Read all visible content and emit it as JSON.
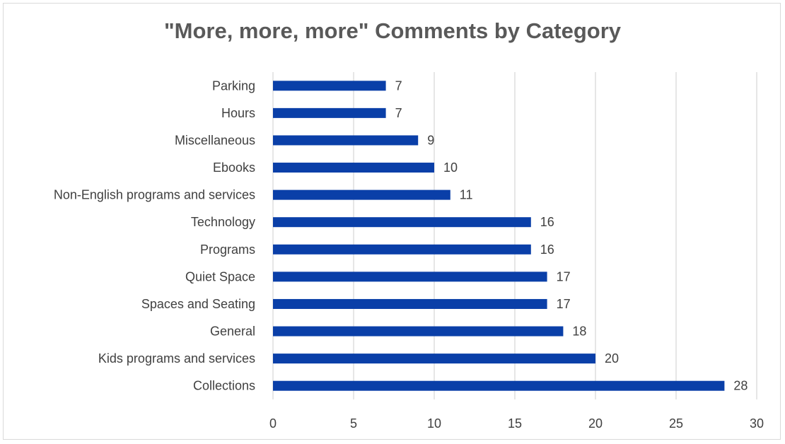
{
  "chart_data": {
    "type": "bar",
    "orientation": "horizontal",
    "title": "\"More, more, more\" Comments by Category",
    "categories": [
      "Parking",
      "Hours",
      "Miscellaneous",
      "Ebooks",
      "Non-English programs and services",
      "Technology",
      "Programs",
      "Quiet Space",
      "Spaces and Seating",
      "General",
      "Kids programs and services",
      "Collections"
    ],
    "values": [
      7,
      7,
      9,
      10,
      11,
      16,
      16,
      17,
      17,
      18,
      20,
      28
    ],
    "xlim": [
      0,
      30
    ],
    "xticks": [
      0,
      5,
      10,
      15,
      20,
      25,
      30
    ],
    "xlabel": "",
    "ylabel": "",
    "grid": "vertical",
    "legend": "none",
    "data_labels": true,
    "bar_color": "#0a3fa8",
    "grid_color": "#d9d9d9"
  }
}
